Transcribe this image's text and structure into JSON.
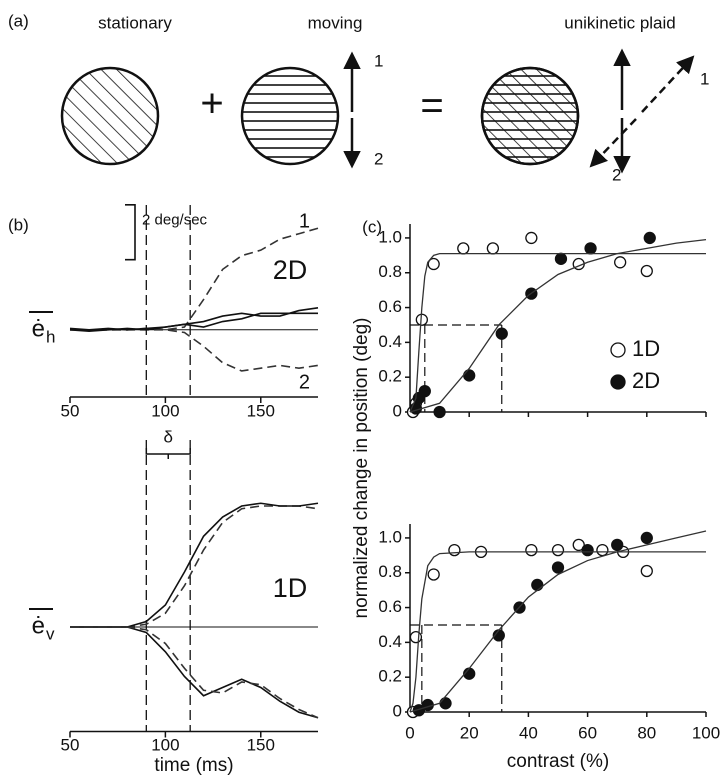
{
  "diagram": {
    "label": "(a)",
    "items": [
      "stationary",
      "moving",
      "unikinetic plaid"
    ],
    "operators": [
      "+",
      "="
    ],
    "arrow_labels": [
      "1",
      "2",
      "1",
      "2"
    ]
  },
  "chart_data": [
    {
      "type": "line",
      "label": "(b)",
      "title": "2D",
      "y_label": "ė",
      "y_label_sub": "h",
      "scale_bar": {
        "label": "2 deg/sec",
        "value": 2
      },
      "x": [
        50,
        60,
        70,
        80,
        90,
        100,
        110,
        120,
        130,
        140,
        150,
        160,
        170,
        180
      ],
      "xlim": [
        50,
        180
      ],
      "xticks": [
        50,
        100,
        150
      ],
      "ylim": [
        -2.45,
        4
      ],
      "markers": [
        90,
        113
      ],
      "zero_line": true,
      "series": [
        {
          "name": "1",
          "color": "#333",
          "dash": true,
          "values": [
            0,
            0,
            0,
            0,
            0.05,
            0,
            0.1,
            1.1,
            2.2,
            2.7,
            2.9,
            3.3,
            3.5,
            3.7
          ]
        },
        {
          "name": "2",
          "color": "#333",
          "dash": true,
          "values": [
            0,
            0,
            0,
            0,
            0,
            0,
            -0.1,
            -0.6,
            -1.2,
            -1.5,
            -1.4,
            -1.3,
            -1.4,
            -1.3
          ]
        },
        {
          "color": "#111",
          "values": [
            0,
            -0.05,
            0,
            0.05,
            0,
            0.1,
            0.2,
            0.3,
            0.5,
            0.6,
            0.5,
            0.5,
            0.7,
            0.8
          ]
        },
        {
          "color": "#111",
          "values": [
            0.05,
            0,
            0.05,
            0,
            0.05,
            0.1,
            0.2,
            0.1,
            0.3,
            0.4,
            0.6,
            0.6,
            0.6,
            0.6
          ]
        }
      ]
    },
    {
      "type": "line",
      "title": "1D",
      "y_label": "ė",
      "y_label_sub": "v",
      "x_label": "time (ms)",
      "delta": "δ",
      "x": [
        50,
        60,
        70,
        80,
        90,
        100,
        110,
        120,
        130,
        140,
        150,
        160,
        170,
        180
      ],
      "xlim": [
        50,
        180
      ],
      "xticks": [
        50,
        100,
        150
      ],
      "ylim": [
        -3.8,
        5
      ],
      "markers": [
        90,
        113
      ],
      "zero_line": true,
      "series": [
        {
          "color": "#333",
          "dash": true,
          "values": [
            0,
            0,
            0,
            0,
            0.1,
            0.5,
            1.5,
            2.8,
            3.8,
            4.3,
            4.4,
            4.4,
            4.4,
            4.3
          ]
        },
        {
          "color": "#111",
          "values": [
            0,
            0,
            0,
            0,
            0.2,
            0.8,
            2.0,
            3.3,
            4.0,
            4.4,
            4.5,
            4.4,
            4.4,
            4.5
          ]
        },
        {
          "color": "#111",
          "values": [
            0,
            0,
            0,
            0,
            -0.2,
            -0.9,
            -1.8,
            -2.5,
            -2.2,
            -1.9,
            -2.2,
            -2.7,
            -3.1,
            -3.3
          ]
        },
        {
          "color": "#333",
          "dash": true,
          "values": [
            0,
            0,
            0,
            0,
            -0.1,
            -0.6,
            -1.5,
            -2.3,
            -2.4,
            -2.0,
            -2.1,
            -2.6,
            -3.0,
            -3.3
          ]
        }
      ]
    },
    {
      "type": "scatter",
      "label": "(c)",
      "y_label": "normalized change in position (deg)",
      "legend": "right",
      "xlim": [
        0,
        100
      ],
      "xticks": [
        0,
        20,
        40,
        60,
        80,
        100
      ],
      "show_xtick_labels": false,
      "ylim": [
        0,
        1.08
      ],
      "yticks": [
        0,
        0.2,
        0.4,
        0.6,
        0.8,
        {
          "value": 1,
          "label": "1.0"
        }
      ],
      "thresholds": [
        5,
        31
      ],
      "threshold_level": 0.5,
      "series": [
        {
          "name": "1D",
          "marker": "open",
          "x": [
            1,
            2,
            4,
            8,
            18,
            28,
            41,
            57,
            71,
            80
          ],
          "values": [
            0,
            0.05,
            0.53,
            0.85,
            0.94,
            0.94,
            1.0,
            0.85,
            0.86,
            0.81
          ]
        },
        {
          "name": "2D",
          "marker": "filled",
          "x": [
            2,
            3,
            5,
            10,
            20,
            31,
            41,
            51,
            61,
            81
          ],
          "values": [
            0.02,
            0.08,
            0.12,
            0,
            0.21,
            0.45,
            0.68,
            0.88,
            0.94,
            1.0
          ]
        },
        {
          "fit": true,
          "x": [
            0,
            2,
            3,
            4,
            5,
            6,
            8,
            10,
            20,
            100
          ],
          "values": [
            0,
            0.08,
            0.35,
            0.6,
            0.78,
            0.86,
            0.9,
            0.91,
            0.91,
            0.91
          ]
        },
        {
          "fit": true,
          "x": [
            0,
            10,
            20,
            30,
            40,
            50,
            60,
            70,
            80,
            90,
            100
          ],
          "values": [
            0,
            0.05,
            0.25,
            0.5,
            0.67,
            0.79,
            0.86,
            0.91,
            0.94,
            0.97,
            0.99
          ]
        }
      ]
    },
    {
      "type": "scatter",
      "x_label": "contrast (%)",
      "xlim": [
        0,
        100
      ],
      "xticks": [
        0,
        20,
        40,
        60,
        80,
        100
      ],
      "show_xtick_labels": true,
      "ylim": [
        0,
        1.08
      ],
      "yticks": [
        0,
        0.2,
        0.4,
        0.6,
        0.8,
        {
          "value": 1,
          "label": "1.0"
        }
      ],
      "thresholds": [
        4,
        31
      ],
      "threshold_level": 0.5,
      "series": [
        {
          "marker": "open",
          "x": [
            1,
            2,
            8,
            15,
            24,
            41,
            50,
            57,
            65,
            72,
            80
          ],
          "values": [
            0,
            0.43,
            0.79,
            0.93,
            0.92,
            0.93,
            0.93,
            0.96,
            0.93,
            0.92,
            0.81
          ]
        },
        {
          "marker": "filled",
          "x": [
            3,
            6,
            12,
            20,
            30,
            37,
            43,
            50,
            60,
            70,
            80
          ],
          "values": [
            0.01,
            0.04,
            0.05,
            0.22,
            0.44,
            0.6,
            0.73,
            0.83,
            0.93,
            0.96,
            1.0
          ]
        },
        {
          "fit": true,
          "x": [
            0,
            1,
            2,
            3,
            4,
            6,
            8,
            10,
            20,
            100
          ],
          "values": [
            0,
            0.05,
            0.2,
            0.45,
            0.65,
            0.84,
            0.89,
            0.91,
            0.92,
            0.92
          ]
        },
        {
          "fit": true,
          "x": [
            0,
            10,
            20,
            30,
            40,
            50,
            60,
            70,
            80,
            90,
            100
          ],
          "values": [
            0,
            0.05,
            0.25,
            0.47,
            0.66,
            0.79,
            0.87,
            0.92,
            0.96,
            1.0,
            1.04
          ]
        }
      ]
    }
  ]
}
